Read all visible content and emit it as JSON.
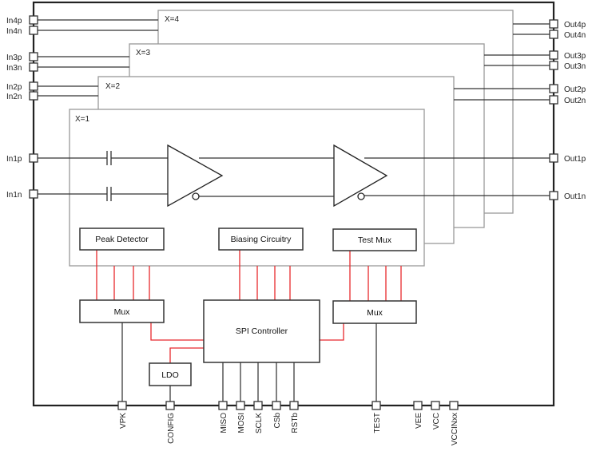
{
  "channels": [
    "X=1",
    "X=2",
    "X=3",
    "X=4"
  ],
  "input_pins": [
    "In4p",
    "In4n",
    "In3p",
    "In3n",
    "In2p",
    "In2n",
    "In1p",
    "In1n"
  ],
  "output_pins": [
    "Out4p",
    "Out4n",
    "Out3p",
    "Out3n",
    "Out2p",
    "Out2n",
    "Out1p",
    "Out1n"
  ],
  "blocks": {
    "peak_detector": "Peak Detector",
    "biasing": "Biasing Circuitry",
    "test_mux": "Test Mux",
    "mux_left": "Mux",
    "mux_right": "Mux",
    "spi": "SPI Controller",
    "ldo": "LDO"
  },
  "bottom_pins": [
    "VPK",
    "CONFIG",
    "MISO",
    "MOSI",
    "SCLK",
    "CSb",
    "RSTb",
    "TEST",
    "VEE",
    "VCC",
    "VCCINxx"
  ],
  "colors": {
    "control_lines": "#e8282d",
    "channel_border": "#999999"
  }
}
